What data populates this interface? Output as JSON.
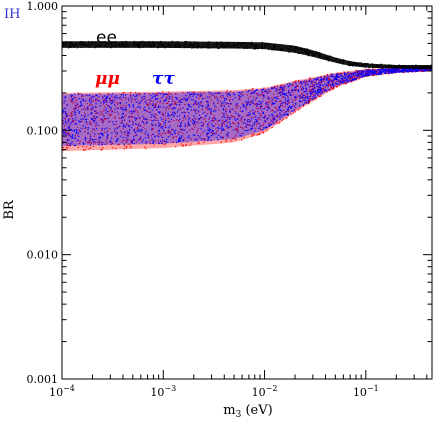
{
  "chart_data": {
    "type": "scatter",
    "title": "",
    "corner_label": "IH",
    "xlabel": "m",
    "xlabel_sub": "3",
    "xlabel_unit": " (eV)",
    "ylabel": "BR",
    "xscale": "log",
    "yscale": "log",
    "xlim": [
      0.0001,
      0.45
    ],
    "ylim": [
      0.001,
      1.0
    ],
    "grid": false,
    "x_ticks": [
      {
        "value": 0.0001,
        "base": "10",
        "exp": "−4"
      },
      {
        "value": 0.001,
        "base": "10",
        "exp": "−3"
      },
      {
        "value": 0.01,
        "base": "10",
        "exp": "−2"
      },
      {
        "value": 0.1,
        "base": "10",
        "exp": "−1"
      }
    ],
    "y_ticks": [
      {
        "value": 0.001,
        "label": "0.001"
      },
      {
        "value": 0.01,
        "label": "0.010"
      },
      {
        "value": 0.1,
        "label": "0.100"
      },
      {
        "value": 1.0,
        "label": "1.000"
      }
    ],
    "series": [
      {
        "name": "ee",
        "color": "#000000",
        "x": [
          0.0001,
          0.001,
          0.005,
          0.01,
          0.02,
          0.03,
          0.05,
          0.07,
          0.1,
          0.2,
          0.45
        ],
        "y_low": [
          0.46,
          0.46,
          0.455,
          0.45,
          0.42,
          0.39,
          0.35,
          0.33,
          0.32,
          0.315,
          0.31
        ],
        "y_high": [
          0.52,
          0.52,
          0.515,
          0.51,
          0.48,
          0.44,
          0.385,
          0.36,
          0.345,
          0.335,
          0.335
        ]
      },
      {
        "name": "μμ",
        "color": "#ff0000",
        "x": [
          0.0001,
          0.001,
          0.005,
          0.01,
          0.02,
          0.05,
          0.1,
          0.2,
          0.45
        ],
        "y_low": [
          0.068,
          0.072,
          0.08,
          0.095,
          0.14,
          0.22,
          0.27,
          0.29,
          0.3
        ],
        "y_high": [
          0.2,
          0.205,
          0.21,
          0.22,
          0.25,
          0.29,
          0.31,
          0.32,
          0.33
        ]
      },
      {
        "name": "ττ",
        "color": "#0000ff",
        "x": [
          0.0001,
          0.001,
          0.005,
          0.01,
          0.02,
          0.05,
          0.1,
          0.2,
          0.45
        ],
        "y_low": [
          0.075,
          0.078,
          0.085,
          0.1,
          0.145,
          0.225,
          0.272,
          0.292,
          0.3
        ],
        "y_high": [
          0.195,
          0.2,
          0.205,
          0.215,
          0.245,
          0.285,
          0.305,
          0.318,
          0.328
        ]
      }
    ],
    "annotations": [
      {
        "text": "ee",
        "series": "ee"
      },
      {
        "text": "μμ",
        "series": "μμ"
      },
      {
        "text": "ττ",
        "series": "ττ"
      }
    ],
    "colors": {
      "corner_label": "#3333cc",
      "frame": "#000000"
    }
  }
}
